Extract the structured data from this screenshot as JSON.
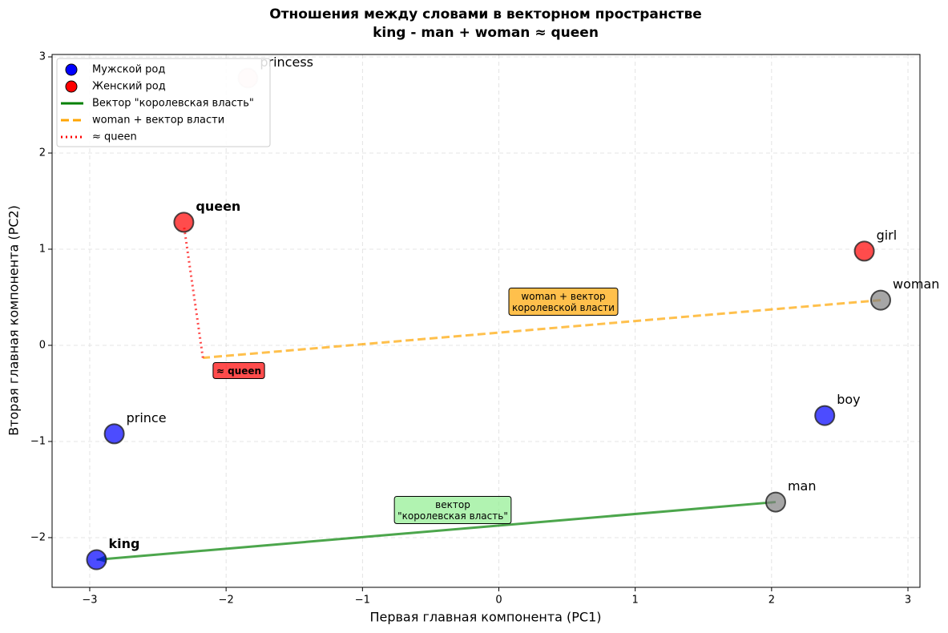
{
  "chart_data": {
    "type": "scatter",
    "title": "Отношения между словами в векторном пространстве",
    "subtitle": "king - man + woman ≈ queen",
    "x_label": "Первая главная компонента (PC1)",
    "y_label": "Вторая главная компонента (PC2)",
    "xlim": [
      -3.276,
      3.088
    ],
    "ylim": [
      -2.517,
      3.025
    ],
    "xticks": [
      {
        "value": -3,
        "label": "−3"
      },
      {
        "value": -2,
        "label": "−2"
      },
      {
        "value": -1,
        "label": "−1"
      },
      0,
      1,
      2,
      3
    ],
    "yticks": [
      {
        "value": -2,
        "label": "−2"
      },
      {
        "value": -1,
        "label": "−1"
      },
      0,
      1,
      2,
      3
    ],
    "grid": true,
    "legend_position": "upper left",
    "legend_markers": [
      {
        "name": "Мужской род",
        "color": "#0000ff"
      },
      {
        "name": "Женский род",
        "color": "#ff0000"
      }
    ],
    "points": [
      {
        "name": "king",
        "x": -2.95,
        "y": -2.23,
        "color": "#0000ff",
        "alpha": 0.7,
        "font_weight": "bold"
      },
      {
        "name": "prince",
        "x": -2.82,
        "y": -0.92,
        "color": "#0000ff",
        "alpha": 0.7,
        "font_weight": "normal"
      },
      {
        "name": "princess",
        "x": -1.84,
        "y": 2.78,
        "color": "#ff0000",
        "alpha": 0.1,
        "font_weight": "normal"
      },
      {
        "name": "queen",
        "x": -2.31,
        "y": 1.28,
        "color": "#ff0000",
        "alpha": 0.7,
        "font_weight": "bold"
      },
      {
        "name": "girl",
        "x": 2.68,
        "y": 0.98,
        "color": "#ff0000",
        "alpha": 0.7,
        "font_weight": "normal"
      },
      {
        "name": "woman",
        "x": 2.8,
        "y": 0.47,
        "color": "#808080",
        "alpha": 0.7,
        "font_weight": "normal"
      },
      {
        "name": "boy",
        "x": 2.39,
        "y": -0.73,
        "color": "#0000ff",
        "alpha": 0.7,
        "font_weight": "normal"
      },
      {
        "name": "man",
        "x": 2.03,
        "y": -1.63,
        "color": "#808080",
        "alpha": 0.7,
        "font_weight": "normal"
      }
    ],
    "lines": [
      {
        "name": "Вектор \"королевская власть\"",
        "color": "#008000",
        "dash": "solid",
        "arrow": true,
        "x": [
          2.03,
          -2.95
        ],
        "y": [
          -1.63,
          -2.23
        ]
      },
      {
        "name": "woman + вектор власти",
        "color": "#ffa500",
        "dash": "dashed",
        "arrow": false,
        "x": [
          2.8,
          -2.17
        ],
        "y": [
          0.47,
          -0.13
        ]
      },
      {
        "name": "≈ queen",
        "color": "#ff0000",
        "dash": "dotted",
        "arrow": false,
        "x": [
          -2.17,
          -2.31
        ],
        "y": [
          -0.13,
          1.25
        ]
      }
    ],
    "annotations": [
      {
        "text": "woman + вектор\nкоролевской власти",
        "color": "#ffa500",
        "font_weight": "normal"
      },
      {
        "text": "≈ queen",
        "color": "#ff0000",
        "font_weight": "bold"
      },
      {
        "text": "вектор\n\"королевская власть\"",
        "color": "#90ee90",
        "font_weight": "normal"
      }
    ]
  }
}
